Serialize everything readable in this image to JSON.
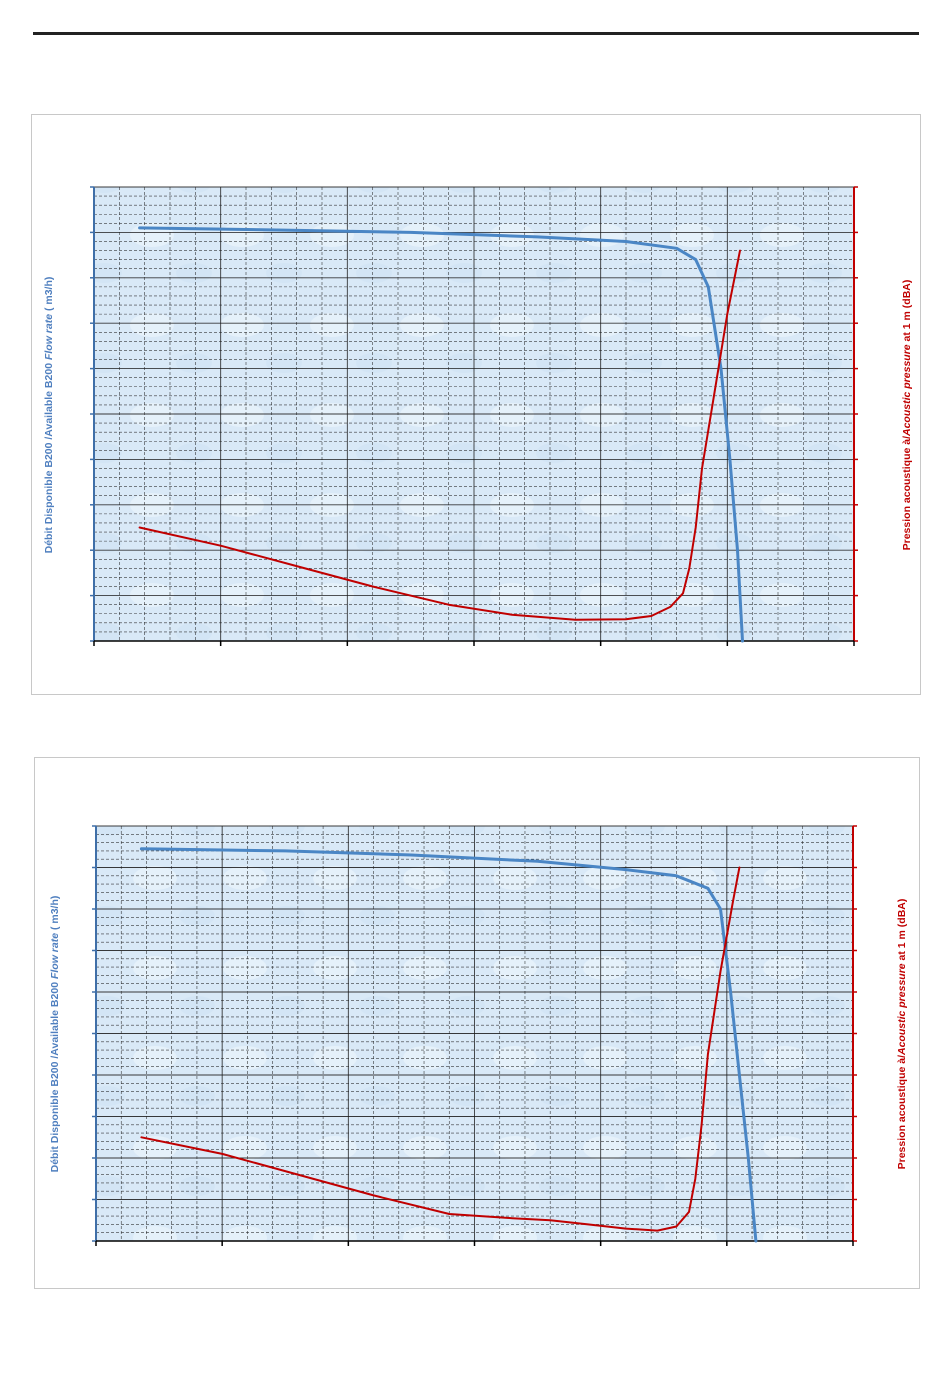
{
  "colors": {
    "plot_background": "#d9e9f7",
    "grid": "#1a1a1a",
    "left_axis": "#3f6fa8",
    "right_axis": "#c00000",
    "flow_series": "#4a86c5",
    "pressure_series": "#c00000"
  },
  "chart_data": [
    {
      "type": "line",
      "title": "",
      "xlabel": "",
      "ylabel_left": {
        "prefix": "Débit Disponible  B200 /Available B200 ",
        "italic": "Flow rate",
        "suffix": " ( m3/h)"
      },
      "ylabel_right": {
        "prefix": "Pression acoustique à/",
        "italic": "Acoustic pressure",
        "suffix": "  at 1 m (dBA)"
      },
      "xlim": [
        0,
        6
      ],
      "ylim": [
        0,
        10
      ],
      "tick_labels_visible": false,
      "grid": true,
      "series": [
        {
          "role": "flow",
          "points": [
            [
              0.36,
              9.1
            ],
            [
              1.5,
              9.05
            ],
            [
              2.5,
              9.0
            ],
            [
              3.5,
              8.9
            ],
            [
              4.2,
              8.8
            ],
            [
              4.6,
              8.65
            ],
            [
              4.75,
              8.4
            ],
            [
              4.85,
              7.8
            ],
            [
              4.95,
              6.0
            ],
            [
              5.02,
              4.0
            ],
            [
              5.08,
              2.0
            ],
            [
              5.12,
              0.0
            ]
          ]
        },
        {
          "role": "pressure",
          "points": [
            [
              0.36,
              2.5
            ],
            [
              1.0,
              2.1
            ],
            [
              1.6,
              1.65
            ],
            [
              2.2,
              1.2
            ],
            [
              2.8,
              0.8
            ],
            [
              3.3,
              0.58
            ],
            [
              3.8,
              0.47
            ],
            [
              4.2,
              0.48
            ],
            [
              4.4,
              0.55
            ],
            [
              4.55,
              0.75
            ],
            [
              4.65,
              1.05
            ],
            [
              4.7,
              1.6
            ],
            [
              4.75,
              2.5
            ],
            [
              4.8,
              3.8
            ],
            [
              4.9,
              5.5
            ],
            [
              5.0,
              7.2
            ],
            [
              5.1,
              8.6
            ]
          ]
        }
      ]
    },
    {
      "type": "line",
      "title": "",
      "xlabel": "",
      "ylabel_left": {
        "prefix": "Débit Disponible  B200 /Available B200 ",
        "italic": "Flow rate",
        "suffix": " ( m3/h)"
      },
      "ylabel_right": {
        "prefix": "Pression acoustique à/",
        "italic": "Acoustic pressure",
        "suffix": "  at 1 m (dBA)"
      },
      "xlim": [
        0,
        6
      ],
      "ylim": [
        0,
        10
      ],
      "tick_labels_visible": false,
      "grid": true,
      "series": [
        {
          "role": "flow",
          "points": [
            [
              0.36,
              9.45
            ],
            [
              1.5,
              9.4
            ],
            [
              2.5,
              9.3
            ],
            [
              3.5,
              9.15
            ],
            [
              4.2,
              8.95
            ],
            [
              4.6,
              8.8
            ],
            [
              4.85,
              8.5
            ],
            [
              4.95,
              8.0
            ],
            [
              5.03,
              6.0
            ],
            [
              5.1,
              4.0
            ],
            [
              5.17,
              2.0
            ],
            [
              5.23,
              0.0
            ]
          ]
        },
        {
          "role": "pressure",
          "points": [
            [
              0.36,
              2.5
            ],
            [
              1.0,
              2.1
            ],
            [
              1.6,
              1.6
            ],
            [
              2.2,
              1.1
            ],
            [
              2.8,
              0.65
            ],
            [
              3.3,
              0.55
            ],
            [
              3.6,
              0.5
            ],
            [
              3.9,
              0.4
            ],
            [
              4.2,
              0.3
            ],
            [
              4.45,
              0.25
            ],
            [
              4.6,
              0.35
            ],
            [
              4.7,
              0.7
            ],
            [
              4.75,
              1.5
            ],
            [
              4.8,
              2.8
            ],
            [
              4.85,
              4.5
            ],
            [
              4.95,
              6.5
            ],
            [
              5.05,
              8.2
            ],
            [
              5.1,
              9.0
            ]
          ]
        }
      ]
    }
  ]
}
